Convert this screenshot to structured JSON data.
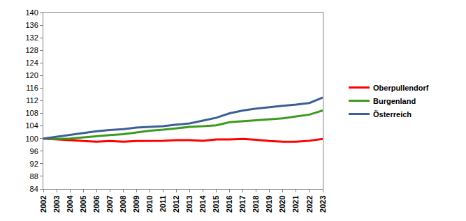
{
  "chart_data": {
    "type": "line",
    "categories": [
      "2002",
      "2003",
      "2004",
      "2005",
      "2006",
      "2007",
      "2008",
      "2009",
      "2010",
      "2011",
      "2012",
      "2013",
      "2014",
      "2015",
      "2016",
      "2017",
      "2018",
      "2019",
      "2020",
      "2021",
      "2022",
      "2023"
    ],
    "series": [
      {
        "name": "Oberpullendorf",
        "color": "#ff0000",
        "values": [
          100,
          99.8,
          99.5,
          99.2,
          99.0,
          99.2,
          99.0,
          99.2,
          99.2,
          99.3,
          99.5,
          99.5,
          99.3,
          99.7,
          99.7,
          99.9,
          99.6,
          99.2,
          99.0,
          99.0,
          99.3,
          99.9
        ]
      },
      {
        "name": "Burgenland",
        "color": "#3c9a1e",
        "values": [
          100,
          99.9,
          100.0,
          100.4,
          100.8,
          101.1,
          101.4,
          102.0,
          102.5,
          102.8,
          103.3,
          103.7,
          103.9,
          104.2,
          105.2,
          105.5,
          105.9,
          106.1,
          106.4,
          107.0,
          107.6,
          108.9
        ]
      },
      {
        "name": "Österreich",
        "color": "#3d5f95",
        "values": [
          100,
          100.6,
          101.1,
          101.7,
          102.3,
          102.7,
          103.0,
          103.5,
          103.7,
          103.9,
          104.4,
          104.8,
          105.7,
          106.6,
          108.0,
          108.9,
          109.5,
          110.0,
          110.4,
          110.8,
          111.3,
          113.0
        ]
      }
    ],
    "ylim": [
      84,
      140
    ],
    "yticks": [
      84,
      88,
      92,
      96,
      100,
      104,
      108,
      112,
      116,
      120,
      124,
      128,
      132,
      136,
      140
    ],
    "grid": false,
    "legend": "right"
  }
}
